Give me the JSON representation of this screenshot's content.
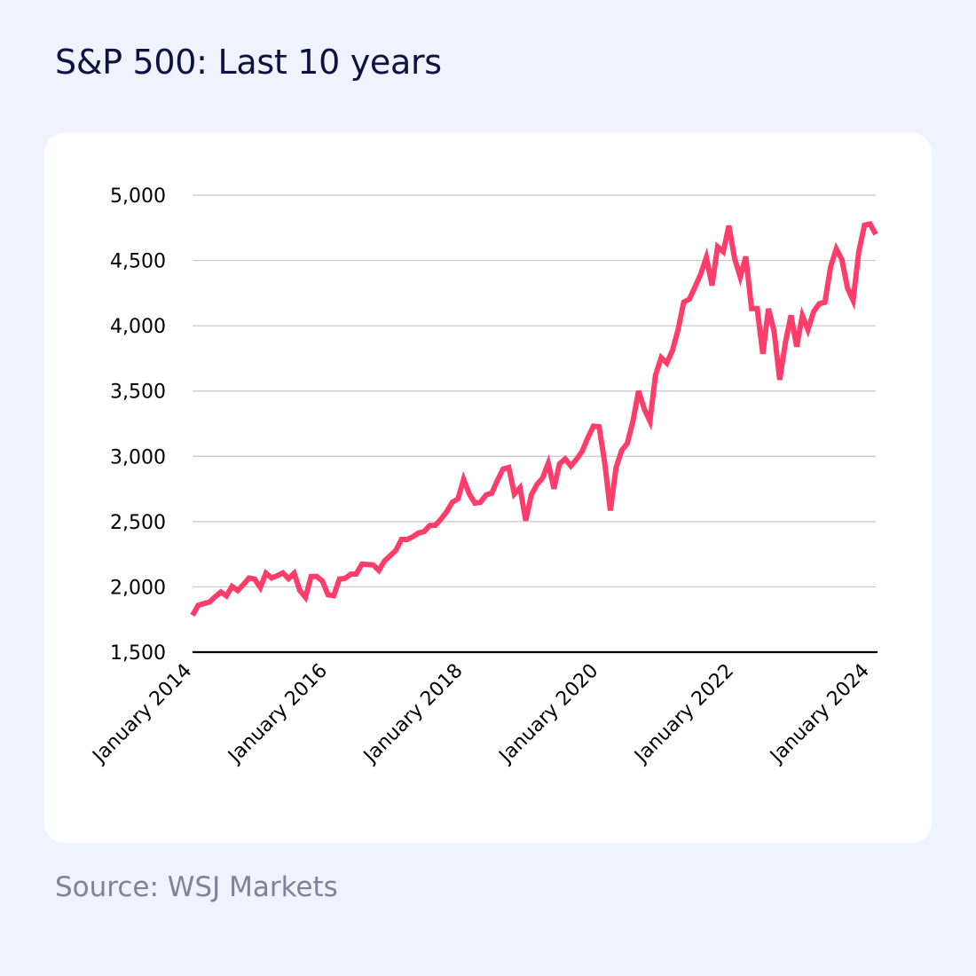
{
  "title": "S&P 500: Last 10 years",
  "source": "Source: WSJ Markets",
  "colors": {
    "background": "#eff3fd",
    "card": "#ffffff",
    "line": "#ff3d6b",
    "grid": "#c8c8c8",
    "axis": "#000000",
    "title": "#0d1240",
    "source": "#7f839a"
  },
  "chart_data": {
    "type": "line",
    "title": "",
    "xlabel": "",
    "ylabel": "",
    "x_range": [
      "2014-01",
      "2024-02"
    ],
    "ylim": [
      1500,
      5000
    ],
    "grid": "horizontal",
    "y_ticks": [
      1500,
      2000,
      2500,
      3000,
      3500,
      4000,
      4500,
      5000
    ],
    "y_tick_labels": [
      "1,500",
      "2,000",
      "2,500",
      "3,000",
      "3,500",
      "4,000",
      "4,500",
      "5,000"
    ],
    "x_ticks": [
      "2014-01",
      "2016-01",
      "2018-01",
      "2020-01",
      "2022-01",
      "2024-01"
    ],
    "x_tick_labels": [
      "January 2014",
      "January 2016",
      "January 2018",
      "January 2020",
      "January 2022",
      "January 2024"
    ],
    "series": [
      {
        "color": "#ff3d6b",
        "x": [
          "2014-01",
          "2014-02",
          "2014-03",
          "2014-04",
          "2014-05",
          "2014-06",
          "2014-07",
          "2014-08",
          "2014-09",
          "2014-10",
          "2014-11",
          "2014-12",
          "2015-01",
          "2015-02",
          "2015-03",
          "2015-04",
          "2015-05",
          "2015-06",
          "2015-07",
          "2015-08",
          "2015-09",
          "2015-10",
          "2015-11",
          "2015-12",
          "2016-01",
          "2016-02",
          "2016-03",
          "2016-04",
          "2016-05",
          "2016-06",
          "2016-07",
          "2016-08",
          "2016-09",
          "2016-10",
          "2016-11",
          "2016-12",
          "2017-01",
          "2017-02",
          "2017-03",
          "2017-04",
          "2017-05",
          "2017-06",
          "2017-07",
          "2017-08",
          "2017-09",
          "2017-10",
          "2017-11",
          "2017-12",
          "2018-01",
          "2018-02",
          "2018-03",
          "2018-04",
          "2018-05",
          "2018-06",
          "2018-07",
          "2018-08",
          "2018-09",
          "2018-10",
          "2018-11",
          "2018-12",
          "2019-01",
          "2019-02",
          "2019-03",
          "2019-04",
          "2019-05",
          "2019-06",
          "2019-07",
          "2019-08",
          "2019-09",
          "2019-10",
          "2019-11",
          "2019-12",
          "2020-01",
          "2020-02",
          "2020-03",
          "2020-04",
          "2020-05",
          "2020-06",
          "2020-07",
          "2020-08",
          "2020-09",
          "2020-10",
          "2020-11",
          "2020-12",
          "2021-01",
          "2021-02",
          "2021-03",
          "2021-04",
          "2021-05",
          "2021-06",
          "2021-07",
          "2021-08",
          "2021-09",
          "2021-10",
          "2021-11",
          "2021-12",
          "2022-01",
          "2022-02",
          "2022-03",
          "2022-04",
          "2022-05",
          "2022-06",
          "2022-07",
          "2022-08",
          "2022-09",
          "2022-10",
          "2022-11",
          "2022-12",
          "2023-01",
          "2023-02",
          "2023-03",
          "2023-04",
          "2023-05",
          "2023-06",
          "2023-07",
          "2023-08",
          "2023-09",
          "2023-10",
          "2023-11",
          "2023-12",
          "2024-01",
          "2024-02"
        ],
        "y": [
          1782,
          1859,
          1872,
          1884,
          1924,
          1960,
          1931,
          2003,
          1972,
          2018,
          2068,
          2059,
          1995,
          2105,
          2068,
          2086,
          2107,
          2063,
          2104,
          1972,
          1920,
          2079,
          2080,
          2044,
          1940,
          1932,
          2060,
          2065,
          2097,
          2099,
          2174,
          2171,
          2168,
          2126,
          2199,
          2239,
          2279,
          2364,
          2363,
          2384,
          2412,
          2423,
          2470,
          2472,
          2519,
          2575,
          2648,
          2674,
          2824,
          2714,
          2641,
          2648,
          2705,
          2718,
          2816,
          2902,
          2914,
          2712,
          2760,
          2507,
          2704,
          2784,
          2834,
          2946,
          2752,
          2942,
          2980,
          2926,
          2977,
          3038,
          3141,
          3231,
          3226,
          2954,
          2585,
          2912,
          3044,
          3100,
          3271,
          3500,
          3363,
          3270,
          3622,
          3756,
          3714,
          3811,
          3973,
          4181,
          4204,
          4298,
          4395,
          4523,
          4308,
          4605,
          4567,
          4766,
          4516,
          4374,
          4530,
          4132,
          4132,
          3785,
          4130,
          3955,
          3586,
          3872,
          4080,
          3840,
          4077,
          3970,
          4109,
          4169,
          4180,
          4450,
          4589,
          4508,
          4288,
          4194,
          4568,
          4770,
          4780,
          4700
        ]
      }
    ]
  }
}
